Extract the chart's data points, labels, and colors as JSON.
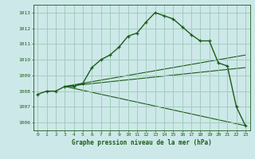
{
  "background_color": "#cde8e8",
  "grid_color": "#9dc8b8",
  "line_color": "#1a5c1a",
  "xlabel": "Graphe pression niveau de la mer (hPa)",
  "ylim": [
    1005.5,
    1013.5
  ],
  "xlim": [
    -0.5,
    23.5
  ],
  "yticks": [
    1006,
    1007,
    1008,
    1009,
    1010,
    1011,
    1012,
    1013
  ],
  "xticks": [
    0,
    1,
    2,
    3,
    4,
    5,
    6,
    7,
    8,
    9,
    10,
    11,
    12,
    13,
    14,
    15,
    16,
    17,
    18,
    19,
    20,
    21,
    22,
    23
  ],
  "main_x": [
    0,
    1,
    2,
    3,
    4,
    5,
    6,
    7,
    8,
    9,
    10,
    11,
    12,
    13,
    14,
    15,
    16,
    17,
    18,
    19,
    20,
    21,
    22,
    23
  ],
  "main_y": [
    1007.8,
    1008.0,
    1008.0,
    1008.3,
    1008.3,
    1008.5,
    1009.5,
    1010.0,
    1010.3,
    1010.8,
    1011.5,
    1011.7,
    1012.4,
    1013.0,
    1012.8,
    1012.6,
    1012.1,
    1011.6,
    1011.2,
    1011.2,
    1009.8,
    1009.6,
    1007.0,
    1005.8
  ],
  "line1_x": [
    3,
    23
  ],
  "line1_y": [
    1008.3,
    1010.3
  ],
  "line2_x": [
    3,
    23
  ],
  "line2_y": [
    1008.3,
    1009.5
  ],
  "line3_x": [
    3,
    23
  ],
  "line3_y": [
    1008.3,
    1005.8
  ]
}
